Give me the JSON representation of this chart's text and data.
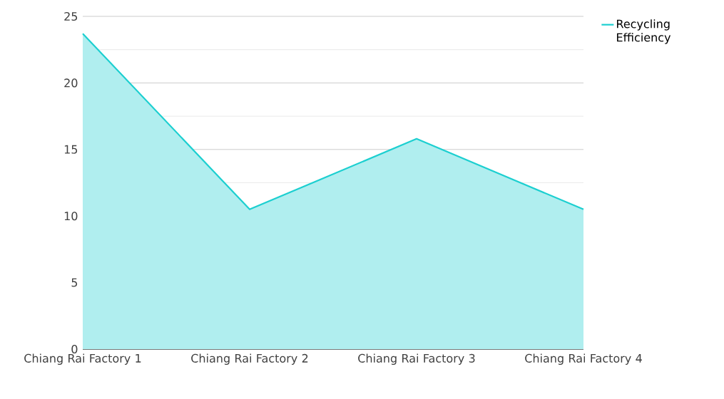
{
  "chart_data": {
    "type": "area",
    "categories": [
      "Chiang Rai Factory 1",
      "Chiang Rai Factory 2",
      "Chiang Rai Factory 3",
      "Chiang Rai Factory 4"
    ],
    "series": [
      {
        "name": "Recycling Efficiency",
        "color": "#1ccfd0",
        "values": [
          23.7,
          10.5,
          15.8,
          10.5
        ]
      }
    ],
    "ylim": [
      0,
      25
    ],
    "yticks": [
      0,
      5,
      10,
      15,
      20,
      25
    ],
    "grid": "y",
    "legend": "top right"
  }
}
